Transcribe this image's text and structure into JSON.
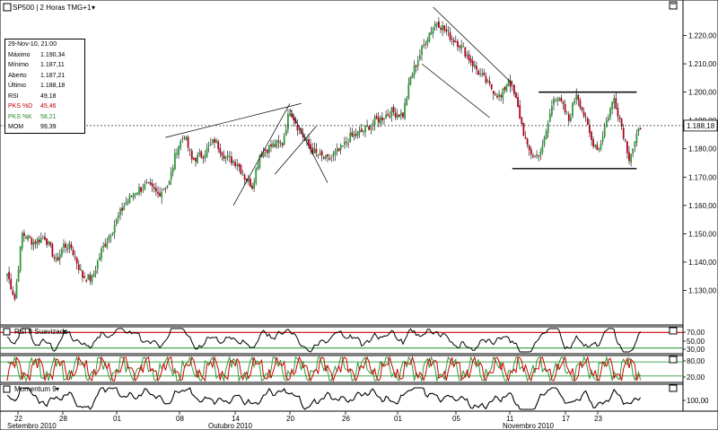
{
  "header": {
    "symbol_label": "SP500 | 2 Horas TMG+1"
  },
  "data_window": {
    "date": "29-Nov-10, 21:00",
    "rows": [
      {
        "label": "Máximo",
        "value": "1.190,34",
        "color": "#000000"
      },
      {
        "label": "Mínimo",
        "value": "1.187,11",
        "color": "#000000"
      },
      {
        "label": "Aberto",
        "value": "1.187,21",
        "color": "#000000"
      },
      {
        "label": "Último",
        "value": "1.188,18",
        "color": "#000000"
      },
      {
        "label": "RSI",
        "value": "49,18",
        "color": "#000000"
      },
      {
        "label": "PKS %D",
        "value": "45,46",
        "color": "#c00000"
      },
      {
        "label": "PKS %K",
        "value": "58,21",
        "color": "#2a8a2a"
      },
      {
        "label": "MOM",
        "value": "99,39",
        "color": "#000000"
      }
    ]
  },
  "panels": {
    "rsi_label": "RSI 9 Suavizado",
    "momentum_label": "Momentum 9"
  },
  "colors": {
    "up": "#2f9a3a",
    "down": "#b1001a",
    "rsi_bands": "#d00000",
    "stoch_k": "#2f9a3a",
    "stoch_d": "#d00000"
  },
  "chart_data": {
    "type": "candlestick",
    "title": "SP500 | 2 Horas TMG+1",
    "price_axis": {
      "ylim": [
        1120,
        1230
      ],
      "ticks": [
        "1.130,00",
        "1.140,00",
        "1.150,00",
        "1.160,00",
        "1.170,00",
        "1.180,00",
        "1.190,00",
        "1.200,00",
        "1.210,00",
        "1.220,00"
      ],
      "last_price_label": "1.188,18"
    },
    "x_axis": {
      "day_ticks": [
        "22",
        "28",
        "01",
        "08",
        "14",
        "20",
        "26",
        "01",
        "05",
        "11",
        "17",
        "23"
      ],
      "month_labels": [
        "Setembro 2010",
        "Outubro 2010",
        "Novembro 2010"
      ]
    },
    "rsi": {
      "ticks": [
        "70,00",
        "50,00",
        "30,00"
      ],
      "bands": [
        70,
        30
      ]
    },
    "stochastic": {
      "ticks": [
        "80,00",
        "20,00"
      ],
      "bands": [
        80,
        20
      ]
    },
    "momentum": {
      "ticks": [
        "100,00"
      ]
    },
    "anchors": [
      [
        0,
        1136
      ],
      [
        4,
        1127
      ],
      [
        8,
        1150
      ],
      [
        14,
        1147
      ],
      [
        20,
        1149
      ],
      [
        26,
        1140
      ],
      [
        30,
        1146
      ],
      [
        34,
        1145
      ],
      [
        40,
        1135
      ],
      [
        45,
        1134
      ],
      [
        50,
        1144
      ],
      [
        56,
        1152
      ],
      [
        62,
        1160
      ],
      [
        68,
        1165
      ],
      [
        74,
        1167
      ],
      [
        80,
        1164
      ],
      [
        86,
        1168
      ],
      [
        90,
        1180
      ],
      [
        94,
        1185
      ],
      [
        98,
        1176
      ],
      [
        104,
        1178
      ],
      [
        110,
        1183
      ],
      [
        116,
        1177
      ],
      [
        122,
        1175
      ],
      [
        126,
        1170
      ],
      [
        130,
        1167
      ],
      [
        134,
        1178
      ],
      [
        140,
        1181
      ],
      [
        146,
        1182
      ],
      [
        150,
        1194
      ],
      [
        154,
        1188
      ],
      [
        160,
        1181
      ],
      [
        164,
        1178
      ],
      [
        170,
        1176
      ],
      [
        176,
        1179
      ],
      [
        182,
        1184
      ],
      [
        188,
        1186
      ],
      [
        196,
        1190
      ],
      [
        204,
        1193
      ],
      [
        210,
        1192
      ],
      [
        214,
        1205
      ],
      [
        220,
        1215
      ],
      [
        224,
        1221
      ],
      [
        228,
        1225
      ],
      [
        232,
        1222
      ],
      [
        236,
        1219
      ],
      [
        240,
        1217
      ],
      [
        244,
        1213
      ],
      [
        250,
        1207
      ],
      [
        256,
        1202
      ],
      [
        262,
        1198
      ],
      [
        266,
        1205
      ],
      [
        270,
        1197
      ],
      [
        276,
        1180
      ],
      [
        280,
        1177
      ],
      [
        284,
        1180
      ],
      [
        288,
        1192
      ],
      [
        290,
        1199
      ],
      [
        294,
        1196
      ],
      [
        298,
        1190
      ],
      [
        302,
        1200
      ],
      [
        306,
        1192
      ],
      [
        310,
        1183
      ],
      [
        314,
        1180
      ],
      [
        318,
        1190
      ],
      [
        322,
        1198
      ],
      [
        326,
        1188
      ],
      [
        330,
        1177
      ],
      [
        333,
        1182
      ],
      [
        336,
        1188
      ]
    ],
    "annotations": [
      {
        "type": "trendline",
        "from": [
          84,
          1184
        ],
        "to": [
          156,
          1196
        ]
      },
      {
        "type": "trendline",
        "from": [
          120,
          1160
        ],
        "to": [
          150,
          1196
        ]
      },
      {
        "type": "trendline",
        "from": [
          150,
          1194
        ],
        "to": [
          170,
          1168
        ]
      },
      {
        "type": "trendline",
        "from": [
          142,
          1171
        ],
        "to": [
          164,
          1188
        ]
      },
      {
        "type": "trendline",
        "from": [
          226,
          1230
        ],
        "to": [
          268,
          1203
        ]
      },
      {
        "type": "trendline",
        "from": [
          220,
          1210
        ],
        "to": [
          256,
          1191
        ]
      },
      {
        "type": "horizontal",
        "from": [
          268,
          1173
        ],
        "to": [
          334,
          1173
        ]
      },
      {
        "type": "horizontal",
        "from": [
          282,
          1200
        ],
        "to": [
          334,
          1200
        ]
      }
    ]
  }
}
